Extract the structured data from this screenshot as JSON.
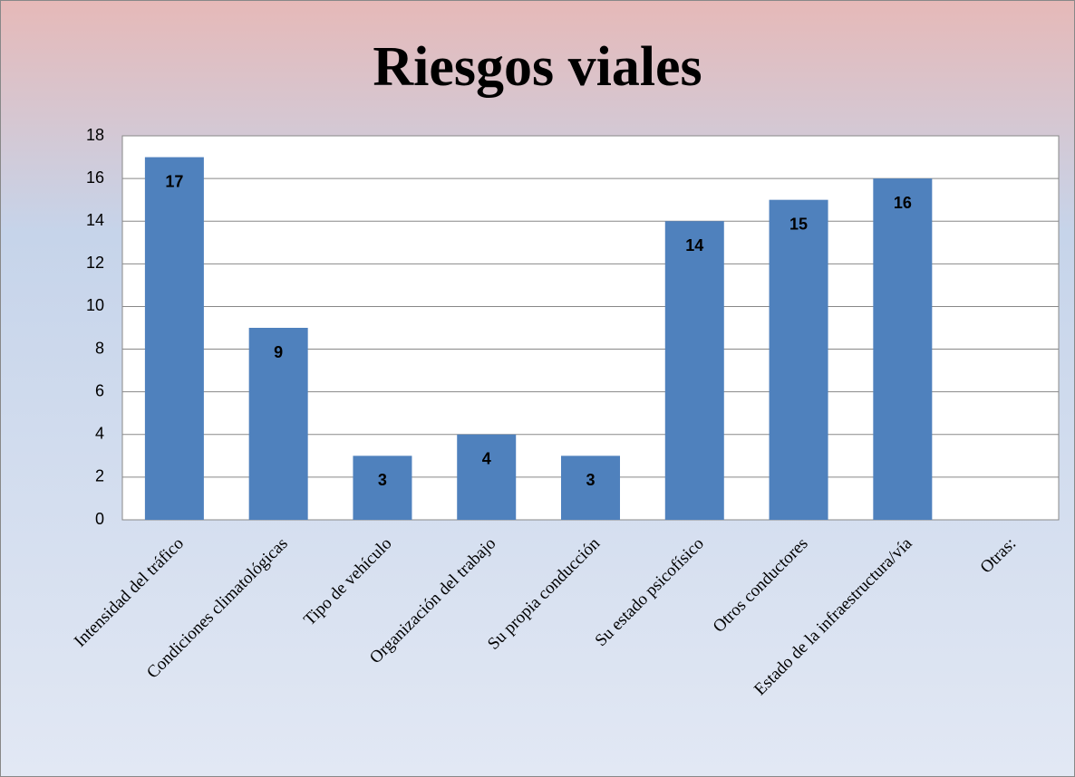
{
  "chart_data": {
    "type": "bar",
    "title": "Riesgos viales",
    "categories": [
      "Intensidad del tráfico",
      "Condiciones climatológicas",
      "Tipo de vehículo",
      "Organización del trabajo",
      "Su propia conducción",
      "Su estado psicofísico",
      "Otros conductores",
      "Estado de la infraestructura/vía",
      "Otras:"
    ],
    "values": [
      17,
      9,
      3,
      4,
      3,
      14,
      15,
      16,
      null
    ],
    "color": "#4f81bd",
    "ylim": [
      0,
      18
    ],
    "yticks": [
      0,
      2,
      4,
      6,
      8,
      10,
      12,
      14,
      16,
      18
    ],
    "grid": true
  }
}
